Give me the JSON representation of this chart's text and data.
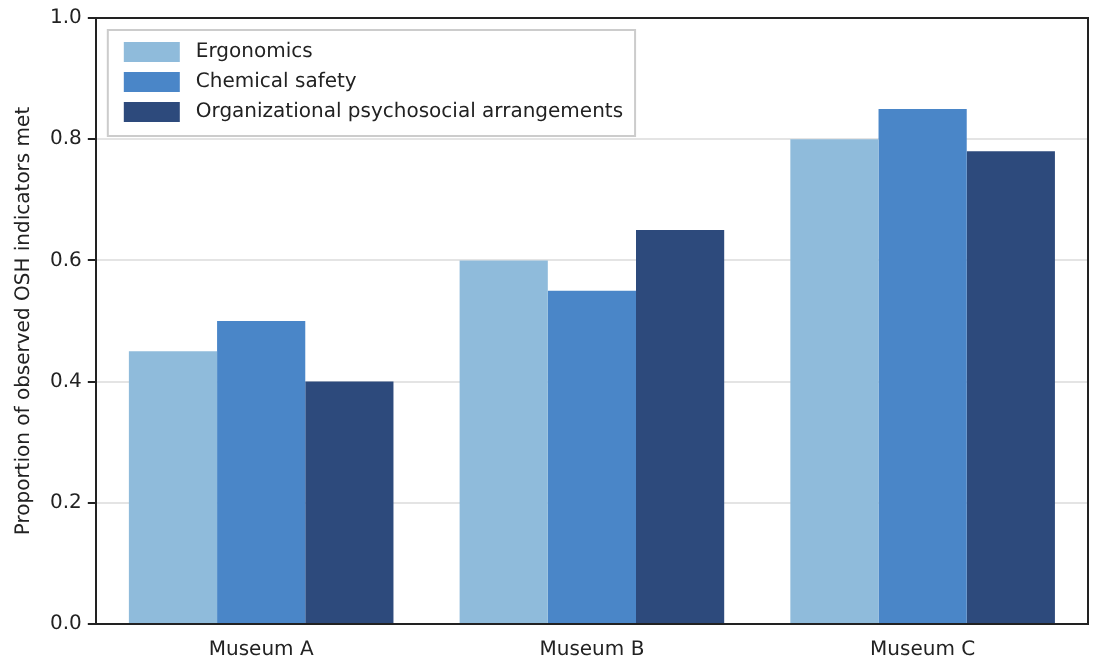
{
  "chart_data": {
    "type": "bar",
    "ylabel": "Proportion of observed OSH indicators met",
    "categories": [
      "Museum A",
      "Museum B",
      "Museum C"
    ],
    "series": [
      {
        "name": "Ergonomics",
        "color": "#8fbbdb",
        "values": [
          0.45,
          0.6,
          0.8
        ]
      },
      {
        "name": "Chemical safety",
        "color": "#4a86c8",
        "values": [
          0.5,
          0.55,
          0.85
        ]
      },
      {
        "name": "Organizational psychosocial arrangements",
        "color": "#2d4a7c",
        "values": [
          0.4,
          0.65,
          0.78
        ]
      }
    ],
    "ylim": [
      0,
      1
    ],
    "yticks": [
      {
        "value": 0,
        "label": "0.0"
      },
      0.2,
      0.4,
      0.6,
      0.8,
      {
        "value": 1,
        "label": "1.0"
      }
    ],
    "grid": "y",
    "legend": "top left"
  }
}
